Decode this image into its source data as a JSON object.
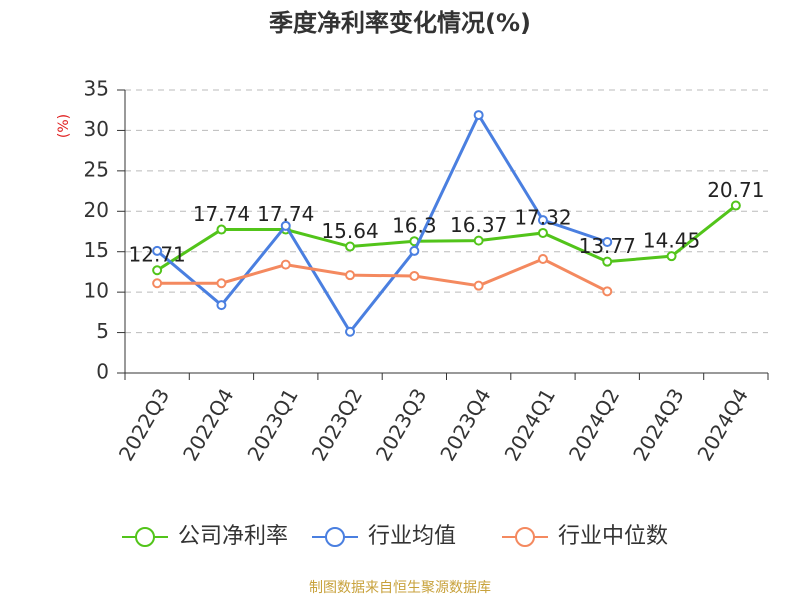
{
  "chart_data": {
    "type": "line",
    "title": "季度净利率变化情况(%)",
    "y_label": "(%)",
    "source": "制图数据来自恒生聚源数据库",
    "categories": [
      "2022Q3",
      "2022Q4",
      "2023Q1",
      "2023Q2",
      "2023Q3",
      "2023Q4",
      "2024Q1",
      "2024Q2",
      "2024Q3",
      "2024Q4"
    ],
    "series": [
      {
        "name": "公司净利率",
        "color": "#52c41a",
        "values": [
          12.71,
          17.74,
          17.74,
          15.64,
          16.3,
          16.37,
          17.32,
          13.77,
          14.45,
          20.71
        ],
        "data_labels": true
      },
      {
        "name": "行业均值",
        "color": "#4a7fe0",
        "values": [
          15.1,
          8.4,
          18.2,
          5.1,
          15.1,
          31.9,
          18.9,
          16.2,
          null,
          null
        ]
      },
      {
        "name": "行业中位数",
        "color": "#f4895f",
        "values": [
          11.1,
          11.1,
          13.4,
          12.1,
          12.0,
          10.8,
          14.1,
          10.1,
          null,
          null
        ]
      }
    ],
    "ylim": [
      0,
      35
    ],
    "yticks": [
      0,
      5,
      10,
      15,
      20,
      25,
      30,
      35
    ],
    "grid": true
  }
}
